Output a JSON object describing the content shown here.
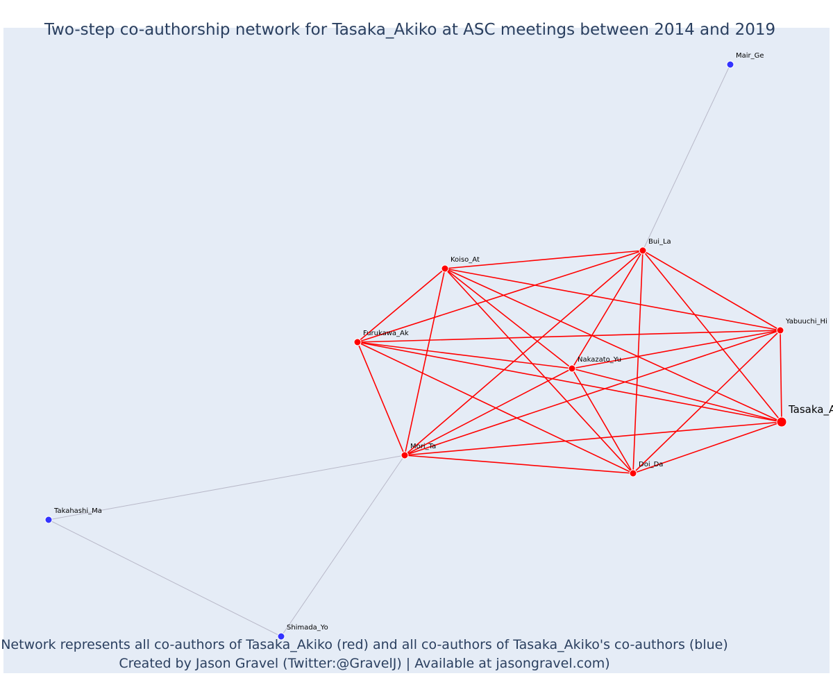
{
  "title": "Two-step co-authorship network for Tasaka_Akiko at ASC meetings between 2014 and 2019",
  "caption_line1": "Network represents all co-authors of Tasaka_Akiko (red) and all co-authors of Tasaka_Akiko's co-authors (blue)",
  "caption_line2": "Created by Jason Gravel (Twitter:@GravelJ) | Available at jasongravel.com)",
  "colors": {
    "plot_bg": "#e5ecf6",
    "coauthor": "#ff0000",
    "second_step": "#3333ff",
    "second_step_edge": "#b8b8c8",
    "text": "#2a3f5f"
  },
  "nodes": [
    {
      "id": "Tasaka_Akiko",
      "label": "Tasaka_Akiko",
      "group": "focal"
    },
    {
      "id": "Bui_La",
      "label": "Bui_La",
      "group": "coauthor"
    },
    {
      "id": "Koiso_At",
      "label": "Koiso_At",
      "group": "coauthor"
    },
    {
      "id": "Furukawa_Ak",
      "label": "Furukawa_Ak",
      "group": "coauthor"
    },
    {
      "id": "Yabuuchi_Hi",
      "label": "Yabuuchi_Hi",
      "group": "coauthor"
    },
    {
      "id": "Nakazato_Yu",
      "label": "Nakazato_Yu",
      "group": "coauthor"
    },
    {
      "id": "Mori_Ta",
      "label": "Mori_Ta",
      "group": "coauthor"
    },
    {
      "id": "Doi_Da",
      "label": "Doi_Da",
      "group": "coauthor"
    },
    {
      "id": "Mair_Ge",
      "label": "Mair_Ge",
      "group": "second"
    },
    {
      "id": "Takahashi_Ma",
      "label": "Takahashi_Ma",
      "group": "second"
    },
    {
      "id": "Shimada_Yo",
      "label": "Shimada_Yo",
      "group": "second"
    }
  ],
  "edges": [
    [
      "Tasaka_Akiko",
      "Bui_La"
    ],
    [
      "Tasaka_Akiko",
      "Koiso_At"
    ],
    [
      "Tasaka_Akiko",
      "Furukawa_Ak"
    ],
    [
      "Tasaka_Akiko",
      "Yabuuchi_Hi"
    ],
    [
      "Tasaka_Akiko",
      "Nakazato_Yu"
    ],
    [
      "Tasaka_Akiko",
      "Mori_Ta"
    ],
    [
      "Tasaka_Akiko",
      "Doi_Da"
    ],
    [
      "Bui_La",
      "Koiso_At"
    ],
    [
      "Bui_La",
      "Furukawa_Ak"
    ],
    [
      "Bui_La",
      "Yabuuchi_Hi"
    ],
    [
      "Bui_La",
      "Nakazato_Yu"
    ],
    [
      "Bui_La",
      "Mori_Ta"
    ],
    [
      "Bui_La",
      "Doi_Da"
    ],
    [
      "Koiso_At",
      "Furukawa_Ak"
    ],
    [
      "Koiso_At",
      "Yabuuchi_Hi"
    ],
    [
      "Koiso_At",
      "Nakazato_Yu"
    ],
    [
      "Koiso_At",
      "Mori_Ta"
    ],
    [
      "Koiso_At",
      "Doi_Da"
    ],
    [
      "Furukawa_Ak",
      "Yabuuchi_Hi"
    ],
    [
      "Furukawa_Ak",
      "Nakazato_Yu"
    ],
    [
      "Furukawa_Ak",
      "Mori_Ta"
    ],
    [
      "Furukawa_Ak",
      "Doi_Da"
    ],
    [
      "Yabuuchi_Hi",
      "Nakazato_Yu"
    ],
    [
      "Yabuuchi_Hi",
      "Mori_Ta"
    ],
    [
      "Yabuuchi_Hi",
      "Doi_Da"
    ],
    [
      "Nakazato_Yu",
      "Mori_Ta"
    ],
    [
      "Nakazato_Yu",
      "Doi_Da"
    ],
    [
      "Mori_Ta",
      "Doi_Da"
    ],
    [
      "Bui_La",
      "Mair_Ge"
    ],
    [
      "Mori_Ta",
      "Takahashi_Ma"
    ],
    [
      "Mori_Ta",
      "Shimada_Yo"
    ],
    [
      "Takahashi_Ma",
      "Shimada_Yo"
    ]
  ]
}
